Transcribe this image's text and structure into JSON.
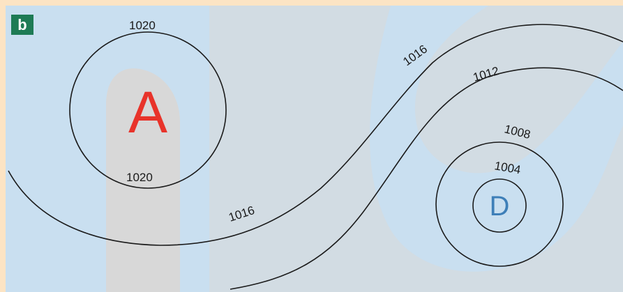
{
  "panel_label": "b",
  "colors": {
    "frame": "#fce4c4",
    "map_background": "#c9dff0",
    "watermark": "#d8d8d8",
    "isobar": "#1a1a1a",
    "badge": "#1e7b55",
    "high_center": "#e8332a",
    "low_center": "#3e7fb8"
  },
  "centers": {
    "high": "A",
    "low": "D"
  },
  "isobar_labels": {
    "high_top": "1020",
    "high_bottom": "1020",
    "upper_1016": "1016",
    "lower_1016": "1016",
    "line_1012": "1012",
    "ring_1008": "1008",
    "ring_1004": "1004"
  }
}
